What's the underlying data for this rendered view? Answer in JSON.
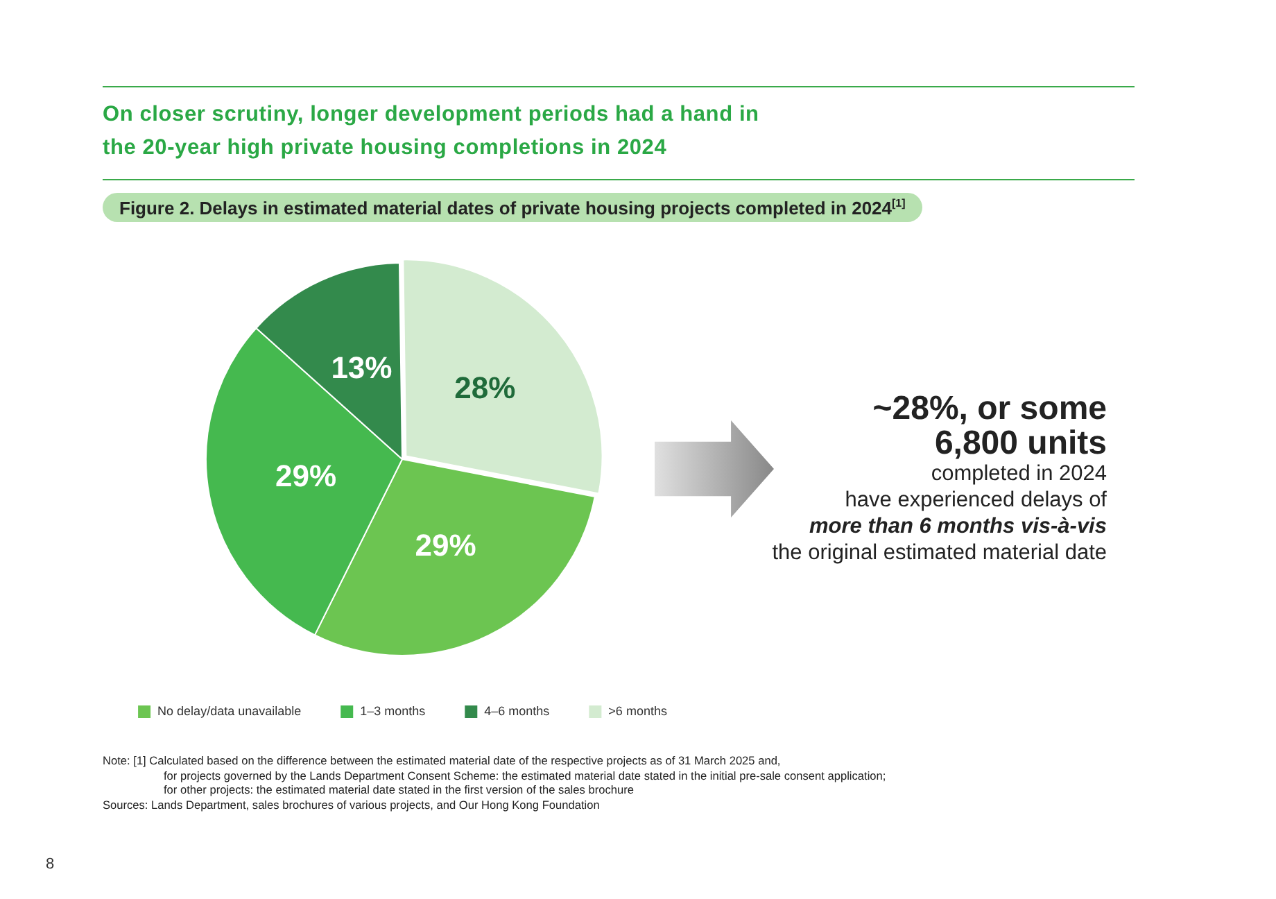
{
  "chart_data": {
    "type": "pie",
    "title": "On closer scrutiny, longer development periods had a hand in\nthe 20-year high private housing completions in 2024",
    "subtitle": "Figure 2. Delays in estimated material dates of private housing projects completed in 2024$^{[1]}$",
    "categories": [
      "No delay/data unavailable",
      "1–3 months",
      "4–6 months",
      ">6 months"
    ],
    "values": [
      29,
      29,
      13,
      28
    ],
    "colors": [
      "#6cc551",
      "#45b94f",
      "#338a4c",
      "#d3ebd0"
    ],
    "value_labels": [
      "29%",
      "29%",
      "13%",
      "28%"
    ],
    "legend": "bottom",
    "annotations": [
      "~28%, or some",
      "6,800 units",
      "completed in 2024",
      "have experienced delays of",
      "more than 6 months vis-à-vis",
      "the original estimated material date",
      "Note: [1] Calculated based on the difference between the estimated material date of the respective projects as of 31 March 2025 and,",
      "for projects governed by the Lands Department Consent Scheme: the estimated material date stated in the initial pre-sale consent application;",
      "for other projects: the estimated material date stated in the first version of the sales brochure",
      "Sources: Lands Department, sales brochures of various projects, and Our Hong Kong Foundation",
      "8"
    ]
  }
}
